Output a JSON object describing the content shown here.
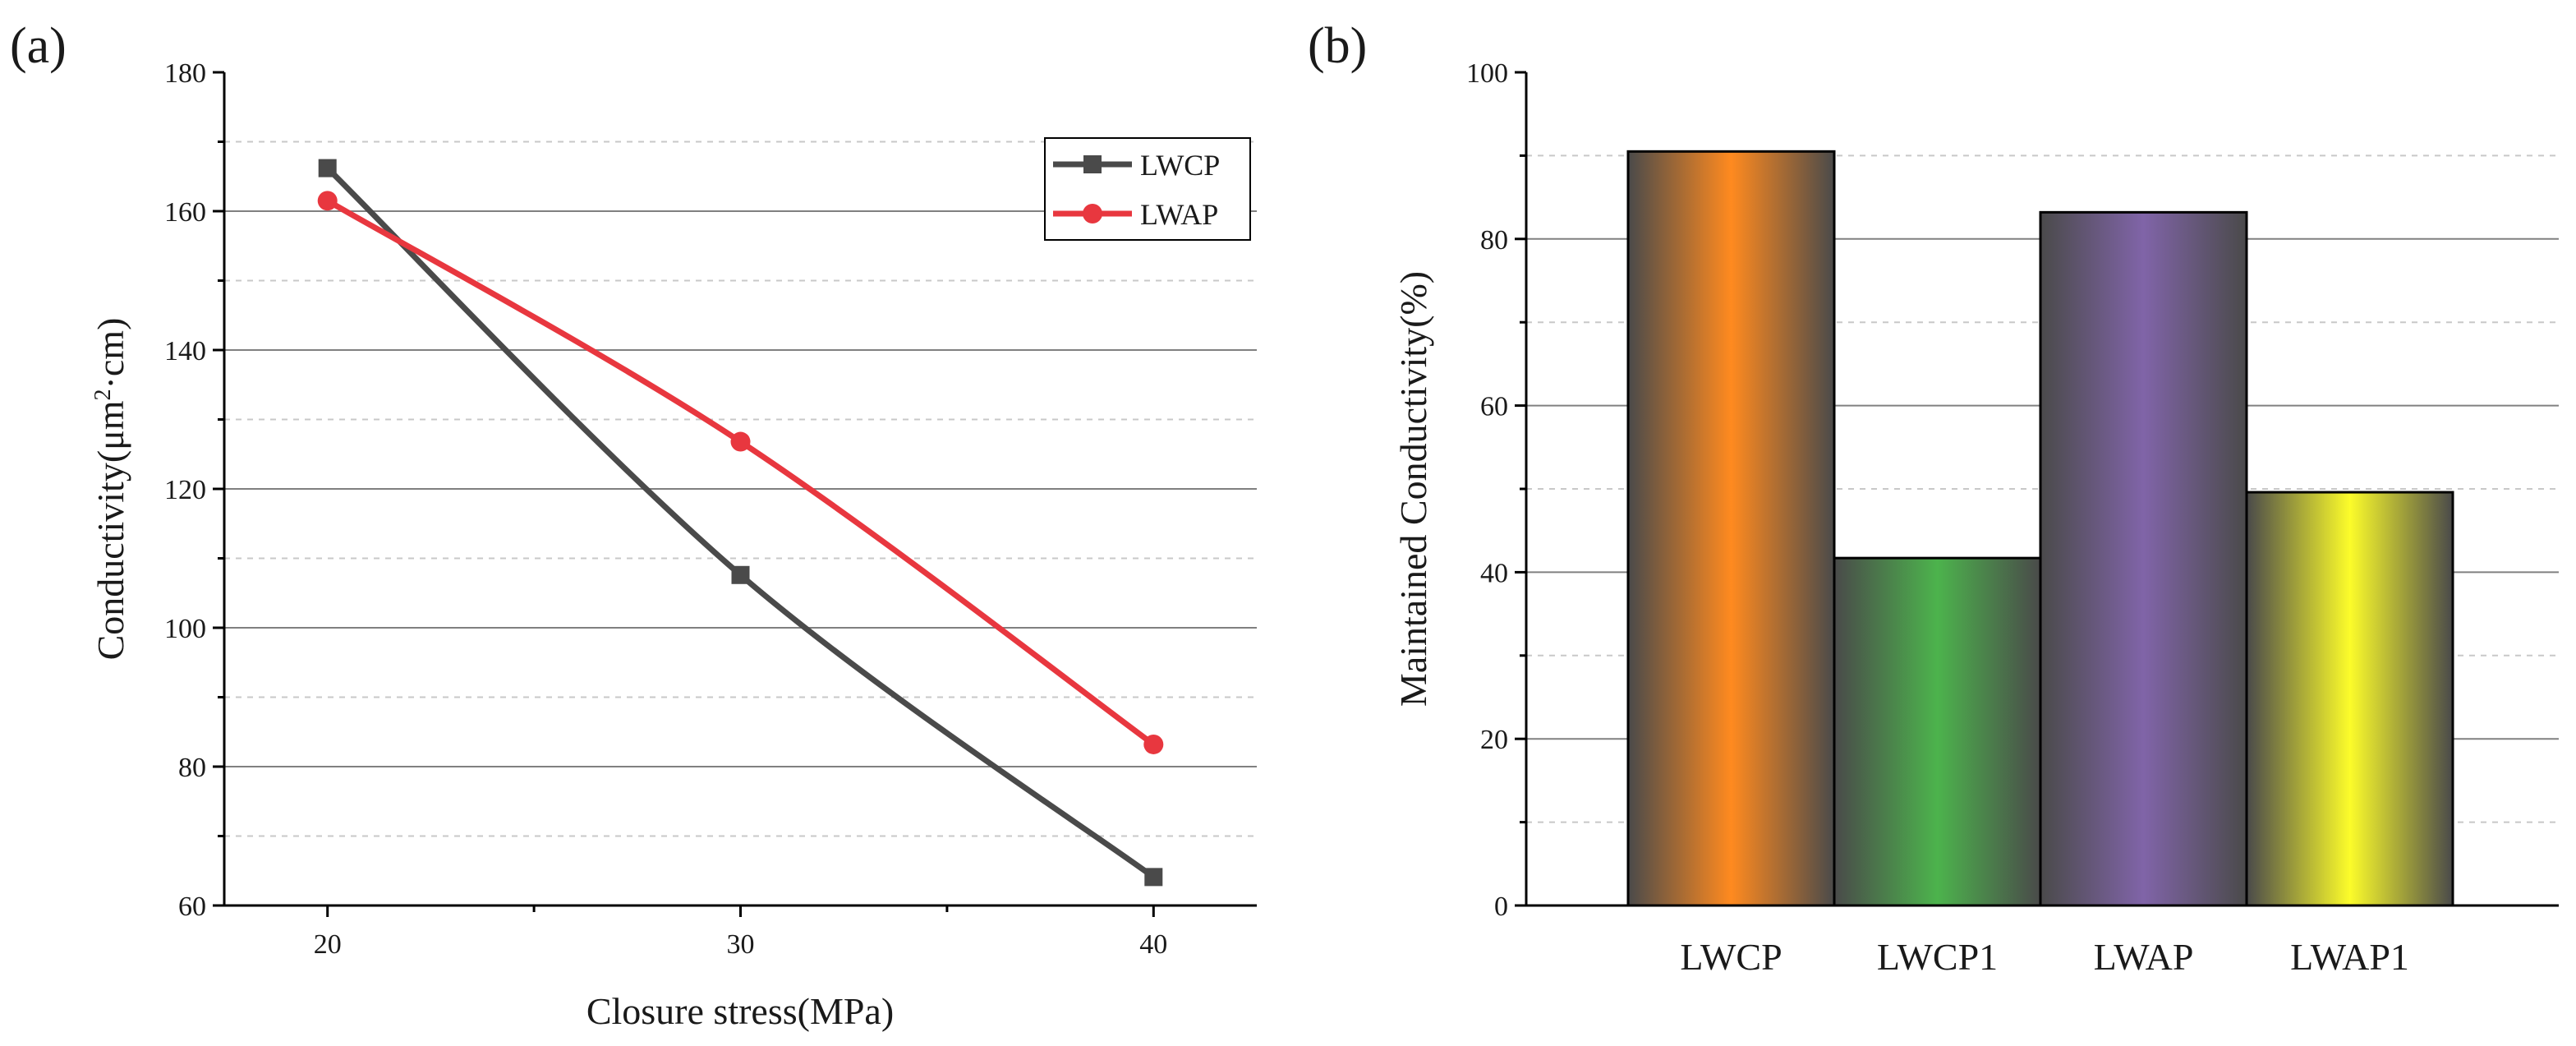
{
  "chart_data": [
    {
      "panel_label": "(a)",
      "type": "line",
      "xlabel": "Closure stress(MPa)",
      "ylabel_main": "Conductivity(μm",
      "ylabel_sup": "2",
      "ylabel_tail": "·cm)",
      "x": [
        20,
        30,
        40
      ],
      "x_ticks": [
        20,
        30,
        40
      ],
      "xlim": [
        17.5,
        42.5
      ],
      "y_ticks": [
        60,
        80,
        100,
        120,
        140,
        160,
        180
      ],
      "ylim": [
        60,
        180
      ],
      "grid": "horizontal major solid, minor dashed",
      "legend_position": "top-right",
      "series": [
        {
          "name": "LWCP",
          "values": [
            166.2,
            107.6,
            64.1
          ],
          "color": "#4a4a4a",
          "marker": "square"
        },
        {
          "name": "LWAP",
          "values": [
            161.5,
            126.8,
            83.2
          ],
          "color": "#e8373f",
          "marker": "circle"
        }
      ]
    },
    {
      "panel_label": "(b)",
      "type": "bar",
      "ylabel": "Maintained Conductivity(%)",
      "categories": [
        "LWCP",
        "LWCP1",
        "LWAP",
        "LWAP1"
      ],
      "values": [
        90.5,
        41.7,
        83.2,
        49.6
      ],
      "colors": [
        "#ff8a1f",
        "#4cb34c",
        "#8064a8",
        "#fcfc2a"
      ],
      "edge_color": "#4a4a4a",
      "y_ticks": [
        0,
        20,
        40,
        60,
        80,
        100
      ],
      "ylim": [
        0,
        100
      ],
      "grid": "horizontal major solid, minor dashed"
    }
  ]
}
